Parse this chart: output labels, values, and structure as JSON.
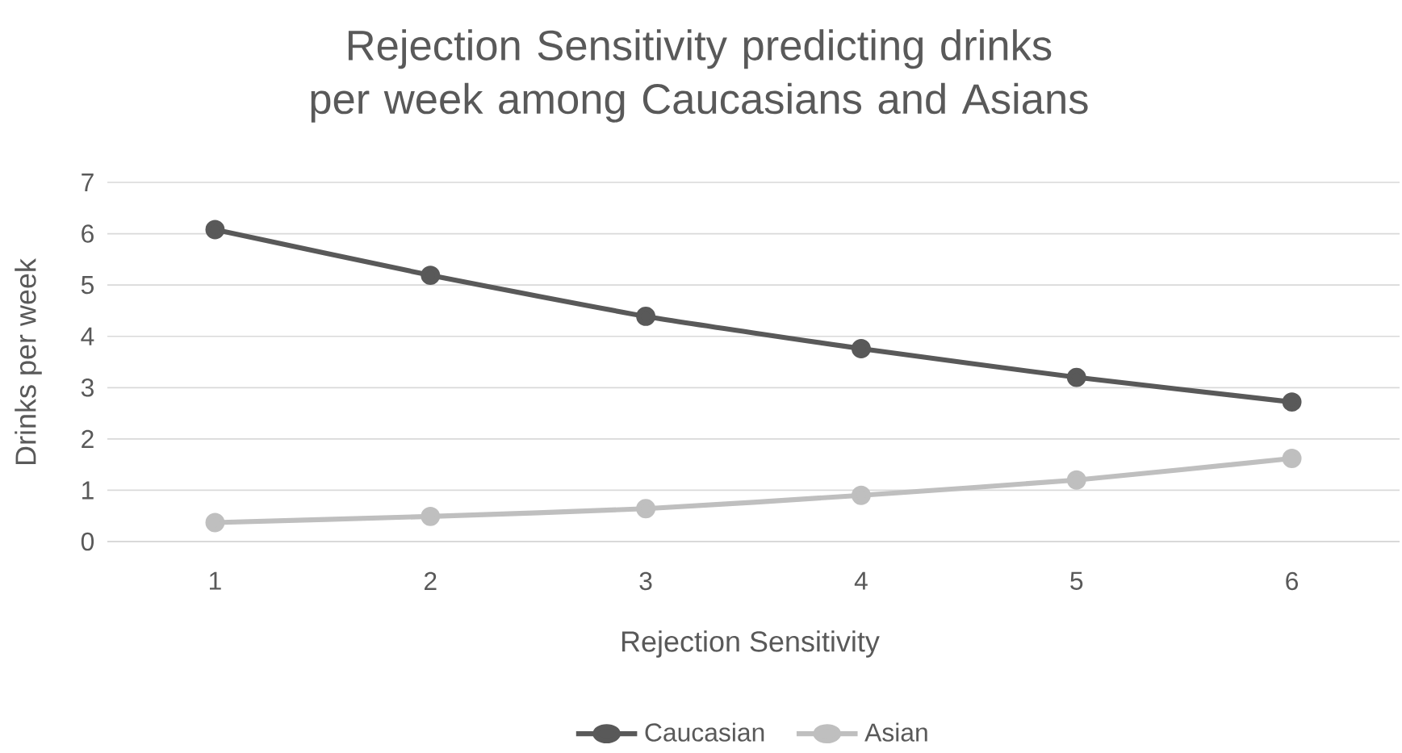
{
  "chart_data": {
    "type": "line",
    "title": "Rejection Sensitivity predicting drinks per week among Caucasians and Asians",
    "xlabel": "Rejection Sensitivity",
    "ylabel": "Drinks per week",
    "categories": [
      "1",
      "2",
      "3",
      "4",
      "5",
      "6"
    ],
    "series": [
      {
        "name": "Caucasian",
        "color": "#595959",
        "values": [
          6.08,
          5.19,
          4.39,
          3.76,
          3.2,
          2.72
        ]
      },
      {
        "name": "Asian",
        "color": "#bfbfbf",
        "values": [
          0.37,
          0.49,
          0.64,
          0.9,
          1.2,
          1.62
        ]
      }
    ],
    "ylim": [
      0,
      7
    ],
    "yticks": [
      0,
      1,
      2,
      3,
      4,
      5,
      6,
      7
    ],
    "grid": "y",
    "legend": "bottom",
    "marker": "circle",
    "line_style": "solid"
  }
}
